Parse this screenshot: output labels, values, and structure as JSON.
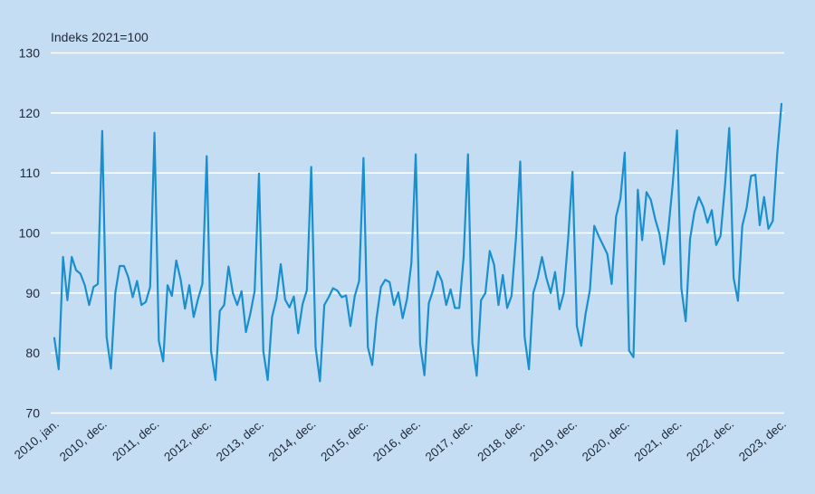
{
  "chart_data": {
    "type": "line",
    "unit_label": "Indeks 2021=100",
    "ylim": [
      70,
      130
    ],
    "yticks": [
      70,
      80,
      90,
      100,
      110,
      120,
      130
    ],
    "x_tick_labels": [
      "2010, jan.",
      "2010, dec.",
      "2011, dec.",
      "2012, dec.",
      "2013, dec.",
      "2014, dec.",
      "2015, dec.",
      "2016, dec.",
      "2017, dec.",
      "2018, dec.",
      "2019, dec.",
      "2020, dec.",
      "2021, dec.",
      "2022, dec.",
      "2023, dec."
    ],
    "x_tick_indices": [
      0,
      11,
      23,
      35,
      47,
      59,
      71,
      83,
      95,
      107,
      119,
      131,
      143,
      155,
      167
    ],
    "grid": true,
    "line_color": "#1a8fce",
    "series": [
      {
        "values": [
          82.5,
          77.3,
          96.0,
          88.8,
          96.0,
          93.8,
          93.2,
          91.3,
          88.0,
          91.0,
          91.5,
          117.0,
          82.7,
          77.4,
          90.0,
          94.5,
          94.5,
          92.6,
          89.3,
          92.0,
          88.0,
          88.5,
          91.0,
          116.7,
          82.0,
          78.6,
          91.3,
          89.5,
          95.4,
          92.3,
          87.4,
          91.3,
          86.0,
          89.0,
          91.5,
          112.8,
          80.3,
          75.5,
          87.0,
          88.0,
          94.4,
          90.0,
          88.0,
          90.3,
          83.5,
          86.5,
          90.3,
          109.9,
          80.3,
          75.5,
          86.0,
          89.0,
          94.8,
          88.9,
          87.6,
          89.4,
          83.3,
          88.1,
          90.5,
          111.0,
          81.0,
          75.3,
          88.0,
          89.3,
          90.8,
          90.4,
          89.3,
          89.6,
          84.5,
          89.5,
          92.0,
          112.5,
          81.0,
          78.0,
          85.8,
          91.0,
          92.2,
          91.8,
          88.0,
          90.1,
          85.8,
          89.0,
          95.0,
          113.1,
          81.5,
          76.3,
          88.3,
          90.5,
          93.6,
          92.0,
          88.0,
          90.6,
          87.5,
          87.5,
          96.0,
          113.1,
          81.7,
          76.2,
          88.8,
          90.0,
          97.0,
          94.7,
          88.0,
          93.0,
          87.5,
          89.5,
          99.0,
          111.9,
          82.7,
          77.3,
          90.0,
          92.5,
          96.0,
          92.5,
          90.0,
          93.5,
          87.3,
          90.0,
          99.0,
          110.2,
          84.5,
          81.2,
          86.5,
          90.5,
          101.2,
          99.5,
          98.0,
          96.5,
          91.5,
          102.7,
          105.7,
          113.4,
          80.4,
          79.3,
          107.2,
          98.8,
          106.8,
          105.5,
          102.3,
          99.8,
          94.8,
          100.5,
          108.0,
          117.1,
          90.8,
          85.3,
          99.0,
          103.5,
          106.0,
          104.4,
          101.7,
          103.8,
          98.0,
          99.5,
          107.7,
          117.5,
          92.5,
          88.7,
          101.2,
          104.2,
          109.5,
          109.7,
          101.3,
          106.0,
          100.7,
          102.0,
          113.0,
          121.5
        ]
      }
    ]
  }
}
